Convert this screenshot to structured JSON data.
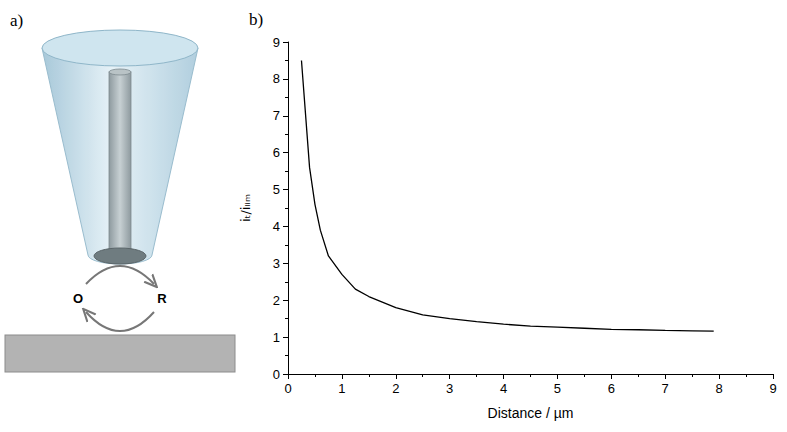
{
  "diagram": {
    "title": "a)",
    "nodes": [
      {
        "label": "O"
      },
      {
        "label": "R"
      }
    ]
  },
  "chart_data": {
    "type": "line",
    "title": "b)",
    "x_label": "Distance / µm",
    "y_label": "iₜ/iₗᵢₘ",
    "x": [
      0.25,
      0.4,
      0.5,
      0.6,
      0.75,
      1.0,
      1.25,
      1.5,
      1.75,
      2.0,
      2.5,
      3.0,
      3.5,
      4.0,
      4.5,
      5.0,
      5.5,
      6.0,
      6.5,
      7.0,
      7.5,
      7.9
    ],
    "values": [
      8.5,
      5.6,
      4.6,
      3.9,
      3.2,
      2.7,
      2.3,
      2.1,
      1.95,
      1.8,
      1.6,
      1.5,
      1.42,
      1.35,
      1.3,
      1.27,
      1.24,
      1.21,
      1.2,
      1.18,
      1.17,
      1.16
    ],
    "color": "#000000",
    "marker": "none",
    "line_style": "solid",
    "xlim": [
      0,
      9
    ],
    "xticks": [
      0,
      1,
      2,
      3,
      4,
      5,
      6,
      7,
      8,
      9
    ],
    "ylim": [
      0,
      9
    ],
    "yticks": [
      0,
      1,
      2,
      3,
      4,
      5,
      6,
      7,
      8,
      9
    ],
    "grid": false
  }
}
